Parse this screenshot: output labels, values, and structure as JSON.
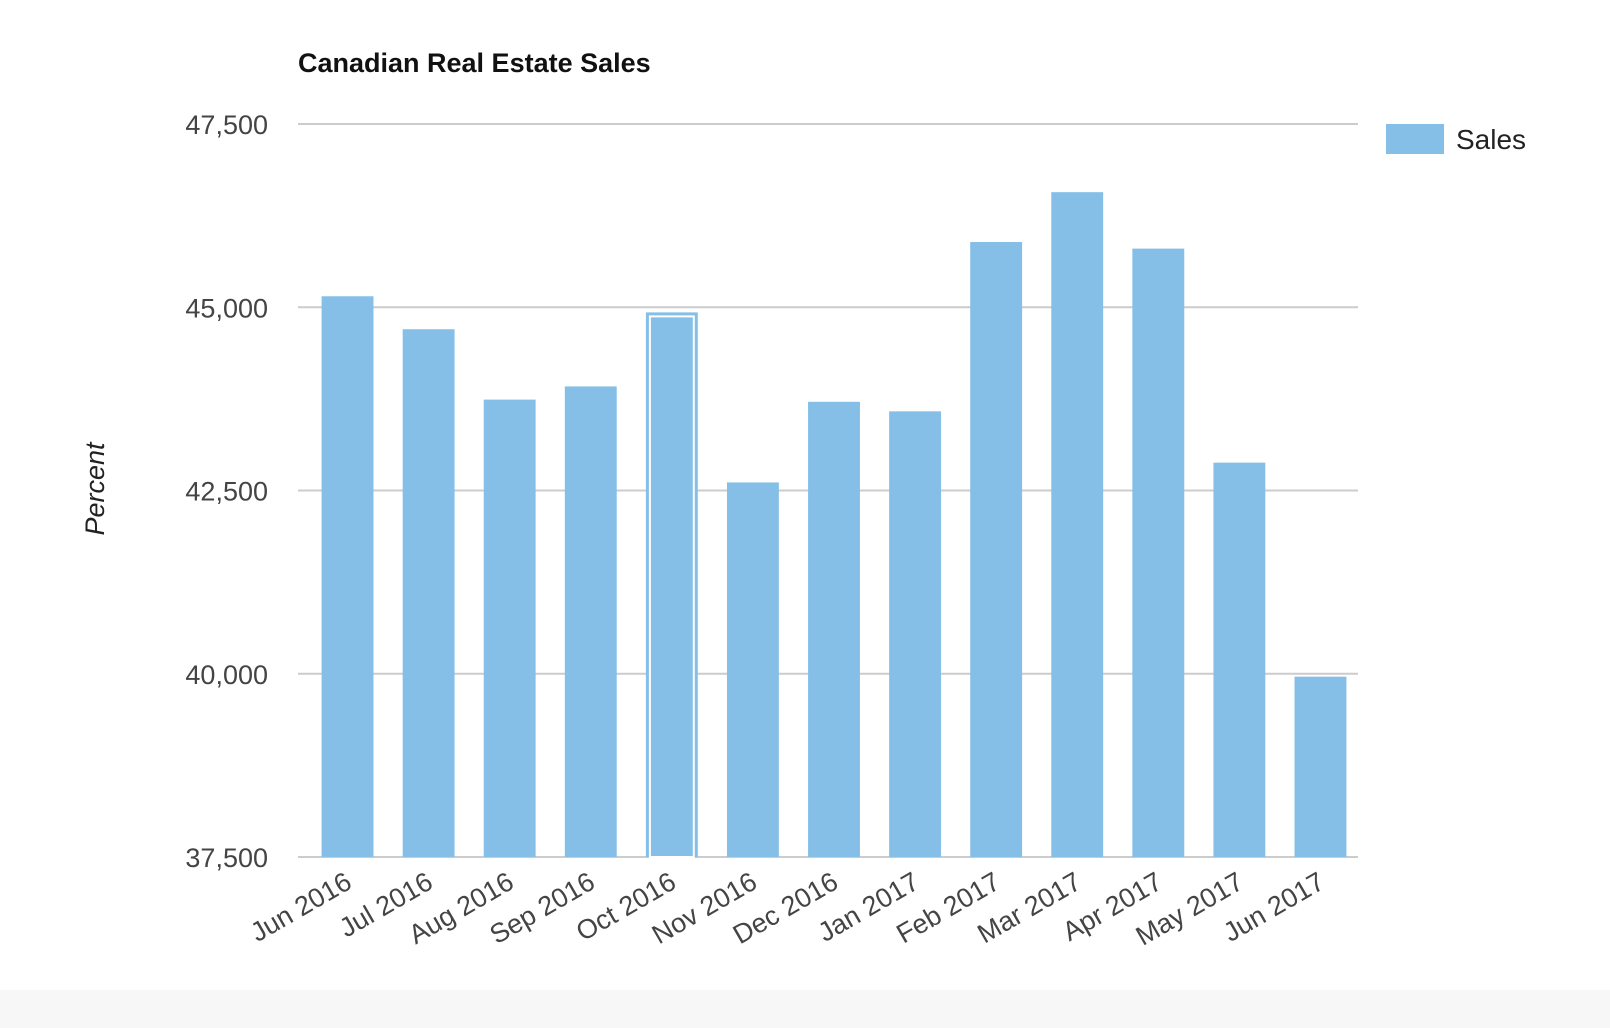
{
  "chart_data": {
    "type": "bar",
    "title": "Canadian Real Estate Sales",
    "xlabel": "",
    "ylabel": "Percent",
    "ylim": [
      37500,
      47500
    ],
    "yticks": [
      37500,
      40000,
      42500,
      45000,
      47500
    ],
    "ytick_labels": [
      "37,500",
      "40,000",
      "42,500",
      "45,000",
      "47,500"
    ],
    "grid": true,
    "legend_position": "top-right",
    "categories": [
      "Jun 2016",
      "Jul 2016",
      "Aug 2016",
      "Sep 2016",
      "Oct 2016",
      "Nov 2016",
      "Dec 2016",
      "Jan 2017",
      "Feb 2017",
      "Mar 2017",
      "Apr 2017",
      "May 2017",
      "Jun 2017"
    ],
    "series": [
      {
        "name": "Sales",
        "color": "#85bfe7",
        "values": [
          45150,
          44700,
          43740,
          43920,
          44930,
          42610,
          43710,
          43580,
          45890,
          46570,
          45800,
          42880,
          39960
        ]
      }
    ],
    "highlighted_category": "Oct 2016"
  }
}
